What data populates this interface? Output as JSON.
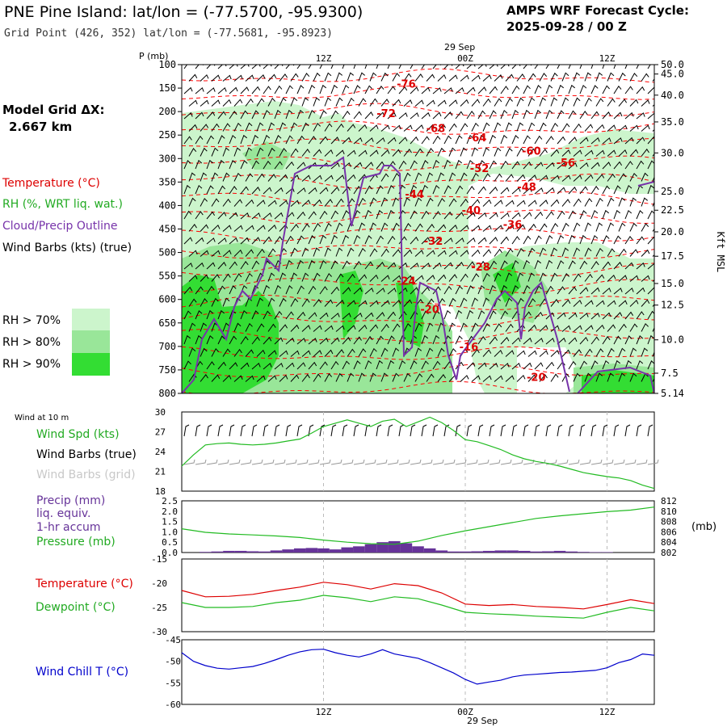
{
  "header": {
    "title": "PNE Pine Island:  lat/lon = (-77.5700, -95.9300)",
    "gridpoint": "Grid Point (426, 352) lat/lon = (-77.5681, -95.8923)",
    "cycle_line1": "AMPS WRF Forecast Cycle:",
    "cycle_line2": "2025-09-28 / 00  Z"
  },
  "time_axis": {
    "date_label": "29 Sep",
    "ticks": [
      "12Z",
      "00Z",
      "12Z"
    ],
    "tick_hours": [
      12,
      24,
      36
    ],
    "hour_range": [
      0,
      40
    ]
  },
  "left_labels": {
    "model_grid_1": "Model Grid ΔX:",
    "model_grid_2": "2.667 km",
    "temperature": "Temperature (°C)",
    "rh": "RH (%, WRT liq. wat.)",
    "cloud": "Cloud/Precip Outline",
    "wind_barbs": "Wind Barbs (kts) (true)",
    "rh70": "RH > 70%",
    "rh80": "RH > 80%",
    "rh90": "RH > 90%",
    "wind_at_10m": "Wind at 10 m",
    "wind_spd": "Wind Spd (kts)",
    "wind_barbs_true": "Wind Barbs (true)",
    "wind_barbs_grid": "Wind Barbs (grid)",
    "precip": "Precip (mm)",
    "liq_equiv": "liq. equiv.",
    "accum": "1-hr accum",
    "pressure": "Pressure (mb)",
    "temperature2": "Temperature (°C)",
    "dewpoint": "Dewpoint (°C)",
    "wind_chill": "Wind Chill T (°C)",
    "mb_unit": "(mb)",
    "kft_msl": "Kft MSL"
  },
  "colors": {
    "temp_red": "#ff0000",
    "rh_green": "#22bb22",
    "cloud_purple": "#7733aa",
    "rh70": "#ccf5cc",
    "rh80": "#99e699",
    "rh90": "#33dd33",
    "wind_chill_blue": "#0000cc",
    "precip_purple": "#663399",
    "grid_gray": "#bbbbbb"
  },
  "chart_data": [
    {
      "type": "heatmap",
      "title": "Vertical cross-section",
      "ylabel": "P (mb)",
      "y_ticks_mb": [
        100,
        150,
        200,
        250,
        300,
        350,
        400,
        450,
        500,
        550,
        600,
        650,
        700,
        750,
        800
      ],
      "right_ticks_kft": [
        "50.0",
        "45.0",
        "40.0",
        "35.0",
        "30.0",
        "25.0",
        "22.5",
        "20.0",
        "17.5",
        "15.0",
        "12.5",
        "10.0",
        "7.5",
        "5.14"
      ],
      "right_ticks_mb": [
        100,
        120,
        165,
        222,
        288,
        370,
        410,
        456,
        508,
        566,
        612,
        686,
        757,
        800
      ],
      "temperature_labels": [
        {
          "hour": 19.0,
          "mb": 140,
          "text": "-76"
        },
        {
          "hour": 17.3,
          "mb": 203,
          "text": "-72"
        },
        {
          "hour": 21.5,
          "mb": 235,
          "text": "-68"
        },
        {
          "hour": 25.0,
          "mb": 255,
          "text": "-64"
        },
        {
          "hour": 29.6,
          "mb": 283,
          "text": "-60"
        },
        {
          "hour": 32.5,
          "mb": 308,
          "text": "-56"
        },
        {
          "hour": 25.2,
          "mb": 320,
          "text": "-52"
        },
        {
          "hour": 29.2,
          "mb": 360,
          "text": "-48"
        },
        {
          "hour": 19.7,
          "mb": 375,
          "text": "-44"
        },
        {
          "hour": 24.5,
          "mb": 410,
          "text": "-40"
        },
        {
          "hour": 28.0,
          "mb": 440,
          "text": "-36"
        },
        {
          "hour": 21.3,
          "mb": 475,
          "text": "-32"
        },
        {
          "hour": 25.3,
          "mb": 530,
          "text": "-28"
        },
        {
          "hour": 19.0,
          "mb": 560,
          "text": "-24"
        },
        {
          "hour": 21.0,
          "mb": 620,
          "text": "-20"
        },
        {
          "hour": 24.3,
          "mb": 700,
          "text": "-16"
        },
        {
          "hour": 30.0,
          "mb": 765,
          "text": "-20"
        }
      ]
    },
    {
      "type": "line",
      "title": "Wind at 10 m",
      "ylim": [
        18,
        30
      ],
      "y_ticks": [
        30,
        27,
        24,
        21,
        18
      ],
      "series": [
        {
          "name": "Wind Spd (kts)",
          "x": [
            0,
            1,
            2,
            3,
            4,
            5,
            6,
            7,
            8,
            9,
            10,
            11,
            12,
            13,
            14,
            15,
            16,
            17,
            18,
            19,
            20,
            21,
            22,
            23,
            24,
            25,
            26,
            27,
            28,
            29,
            30,
            31,
            32,
            33,
            34,
            35,
            36,
            37,
            38,
            39,
            40
          ],
          "values": [
            21.8,
            23.5,
            25.0,
            25.2,
            25.3,
            25.1,
            25.0,
            25.1,
            25.3,
            25.6,
            25.9,
            26.8,
            27.8,
            28.3,
            28.8,
            28.3,
            27.8,
            28.6,
            28.9,
            27.8,
            28.5,
            29.2,
            28.4,
            27.2,
            25.8,
            25.5,
            24.9,
            24.3,
            23.5,
            22.9,
            22.5,
            22.2,
            21.8,
            21.3,
            20.8,
            20.5,
            20.2,
            20.0,
            19.6,
            18.9,
            18.4
          ]
        }
      ]
    },
    {
      "type": "bar",
      "title": "Precip / Pressure",
      "ylim_precip": [
        0,
        2.5
      ],
      "precip_ticks": [
        "2.5",
        "2.0",
        "1.5",
        "1.0",
        "0.5",
        "0.0"
      ],
      "ylim_pressure": [
        802,
        812
      ],
      "pressure_ticks": [
        812,
        810,
        808,
        806,
        804,
        802
      ],
      "precip_x": [
        2,
        3,
        4,
        5,
        6,
        7,
        8,
        9,
        10,
        11,
        12,
        13,
        14,
        15,
        16,
        17,
        18,
        19,
        20,
        21,
        22,
        23,
        24,
        25,
        26,
        27,
        28,
        29,
        30,
        31,
        32,
        33,
        34,
        35,
        36
      ],
      "precip_values": [
        0.03,
        0.05,
        0.08,
        0.08,
        0.06,
        0.05,
        0.1,
        0.15,
        0.2,
        0.22,
        0.2,
        0.15,
        0.25,
        0.3,
        0.4,
        0.5,
        0.55,
        0.45,
        0.3,
        0.2,
        0.1,
        0.05,
        0.05,
        0.06,
        0.08,
        0.1,
        0.1,
        0.08,
        0.05,
        0.06,
        0.08,
        0.05,
        0.03,
        0.02,
        0.02
      ],
      "pressure_x": [
        0,
        2,
        4,
        6,
        8,
        10,
        12,
        14,
        16,
        18,
        20,
        22,
        24,
        26,
        28,
        30,
        32,
        34,
        36,
        38,
        40
      ],
      "pressure_values": [
        806.6,
        805.9,
        805.6,
        805.4,
        805.2,
        804.9,
        804.4,
        804.0,
        803.7,
        803.6,
        804.2,
        805.3,
        806.2,
        807.0,
        807.8,
        808.6,
        809.1,
        809.5,
        809.9,
        810.2,
        810.8
      ]
    },
    {
      "type": "line",
      "title": "Temperature / Dewpoint",
      "ylim": [
        -30,
        -15
      ],
      "y_ticks": [
        -15,
        -20,
        -25,
        -30
      ],
      "x": [
        0,
        2,
        4,
        6,
        8,
        10,
        12,
        14,
        16,
        18,
        20,
        22,
        24,
        26,
        28,
        30,
        32,
        34,
        36,
        38,
        40
      ],
      "series": [
        {
          "name": "Temperature (°C)",
          "values": [
            -21.5,
            -22.8,
            -22.7,
            -22.3,
            -21.5,
            -20.8,
            -19.8,
            -20.3,
            -21.2,
            -20.1,
            -20.5,
            -22.0,
            -24.3,
            -24.6,
            -24.4,
            -24.8,
            -25.0,
            -25.3,
            -24.4,
            -23.4,
            -24.2
          ]
        },
        {
          "name": "Dewpoint (°C)",
          "values": [
            -24.0,
            -25.0,
            -25.0,
            -24.8,
            -24.0,
            -23.5,
            -22.5,
            -23.0,
            -23.8,
            -22.8,
            -23.2,
            -24.5,
            -26.0,
            -26.3,
            -26.5,
            -26.8,
            -27.0,
            -27.2,
            -26.0,
            -25.0,
            -25.7
          ]
        }
      ]
    },
    {
      "type": "line",
      "title": "Wind Chill",
      "ylim": [
        -60,
        -45
      ],
      "y_ticks": [
        -45,
        -50,
        -55,
        -60
      ],
      "x": [
        0,
        1,
        2,
        3,
        4,
        5,
        6,
        7,
        8,
        9,
        10,
        11,
        12,
        13,
        14,
        15,
        16,
        17,
        18,
        19,
        20,
        21,
        22,
        23,
        24,
        25,
        26,
        27,
        28,
        29,
        30,
        31,
        32,
        33,
        34,
        35,
        36,
        37,
        38,
        39,
        40
      ],
      "series": [
        {
          "name": "Wind Chill T (°C)",
          "values": [
            -48.0,
            -50.0,
            -51.0,
            -51.6,
            -51.8,
            -51.5,
            -51.2,
            -50.5,
            -49.6,
            -48.6,
            -47.8,
            -47.3,
            -47.2,
            -48.0,
            -48.6,
            -49.0,
            -48.3,
            -47.3,
            -48.3,
            -48.8,
            -49.3,
            -50.3,
            -51.5,
            -52.7,
            -54.2,
            -55.3,
            -54.8,
            -54.4,
            -53.6,
            -53.2,
            -53.0,
            -52.8,
            -52.6,
            -52.5,
            -52.3,
            -52.1,
            -51.5,
            -50.3,
            -49.6,
            -48.3,
            -48.6
          ]
        }
      ]
    }
  ]
}
